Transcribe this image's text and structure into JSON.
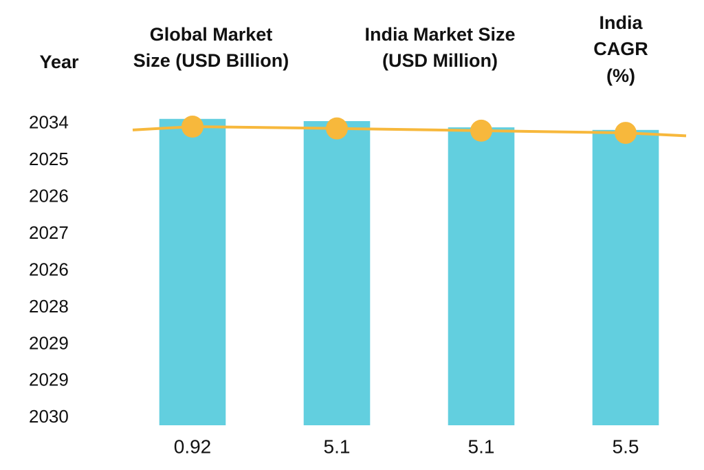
{
  "chart_data": {
    "type": "bar",
    "ytitle": "Year",
    "headers": [
      [
        "Global Market",
        "Size (USD Billion)"
      ],
      [
        "India Market Size",
        "(USD Million)"
      ],
      [
        "India",
        "CAGR",
        "(%)"
      ]
    ],
    "categories": [
      "0.92",
      "5.1",
      "5.1",
      "5.5"
    ],
    "values": [
      8.13,
      8.07,
      7.9,
      7.83
    ],
    "color": "#62cfdf",
    "line": {
      "color": "#f7b83c",
      "values": [
        7.92,
        7.87,
        7.81,
        7.75
      ]
    },
    "ylim": [
      -0.2,
      8.5
    ],
    "yticks": [
      {
        "value": 8,
        "label": "2034"
      },
      {
        "value": 7,
        "label": "2025"
      },
      {
        "value": 6,
        "label": "2026"
      },
      {
        "value": 5,
        "label": "2027"
      },
      {
        "value": 4,
        "label": "2026"
      },
      {
        "value": 3,
        "label": "2028"
      },
      {
        "value": 2,
        "label": "2029"
      },
      {
        "value": 1,
        "label": "2029"
      },
      {
        "value": 0,
        "label": "2030"
      }
    ],
    "grid": false
  }
}
